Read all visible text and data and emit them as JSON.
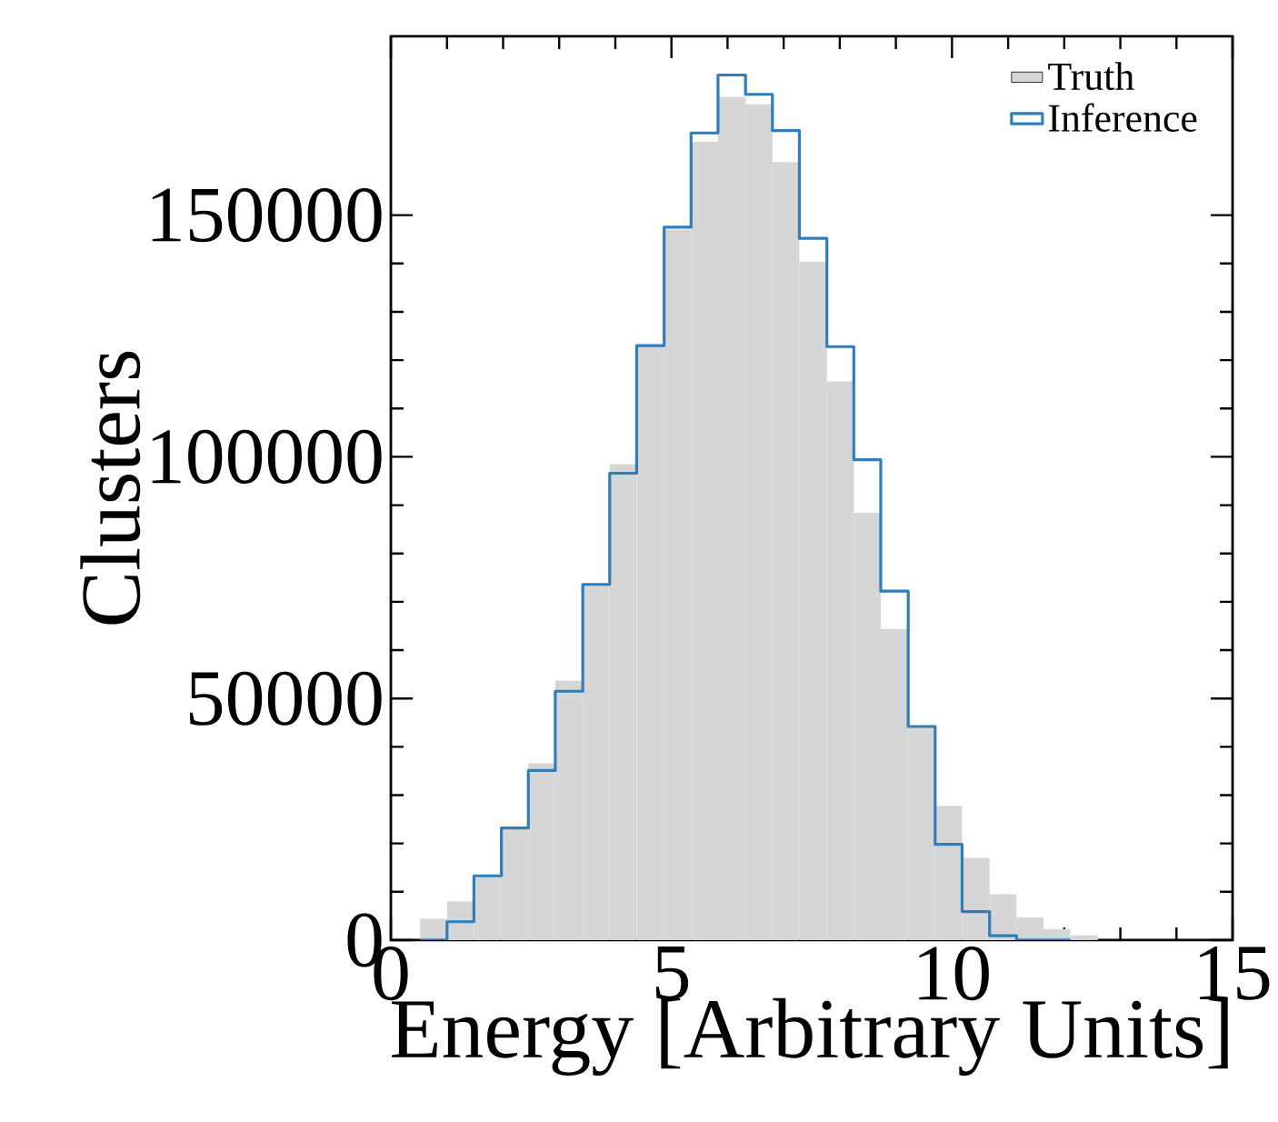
{
  "chart_data": {
    "type": "histogram",
    "xlabel": "Energy [Arbitrary Units]",
    "ylabel": "Clusters",
    "bins": [
      0.52,
      1.0,
      1.48,
      1.97,
      2.45,
      2.93,
      3.42,
      3.9,
      4.38,
      4.87,
      5.35,
      5.83,
      6.32,
      6.8,
      7.28,
      7.77,
      8.25,
      8.73,
      9.22,
      9.7,
      10.18,
      10.67,
      11.15,
      11.63,
      12.11,
      12.6
    ],
    "series": [
      {
        "name": "Truth",
        "color": "#d6d6d6",
        "values": [
          4400,
          8000,
          13000,
          23000,
          36600,
          53700,
          73600,
          98500,
          123000,
          147000,
          165200,
          174500,
          173000,
          161000,
          140400,
          115600,
          88400,
          64400,
          44200,
          27800,
          17000,
          9500,
          4700,
          2300,
          1000
        ]
      },
      {
        "name": "Inference",
        "type": "step",
        "color": "#2e7ebc",
        "x": [
          0.52,
          1.0,
          1.48,
          1.97,
          2.45,
          2.93,
          3.42,
          3.9,
          4.38,
          4.87,
          5.35,
          5.83,
          6.32,
          6.8,
          7.28,
          7.77,
          8.25,
          8.73,
          9.22,
          9.7,
          10.18,
          10.67,
          11.15,
          11.63,
          12.11
        ],
        "values": [
          0,
          3800,
          13300,
          23200,
          35100,
          51500,
          73600,
          96600,
          123000,
          147500,
          167000,
          179000,
          175000,
          167500,
          145200,
          122800,
          99400,
          72200,
          44200,
          19800,
          5900,
          900,
          0,
          0,
          0
        ]
      }
    ],
    "xlim": [
      0,
      15
    ],
    "ylim": [
      0,
      187000
    ],
    "xticks": [
      0,
      5,
      10,
      15
    ],
    "yticks": [
      0,
      50000,
      100000,
      150000
    ],
    "legend": "top right"
  }
}
